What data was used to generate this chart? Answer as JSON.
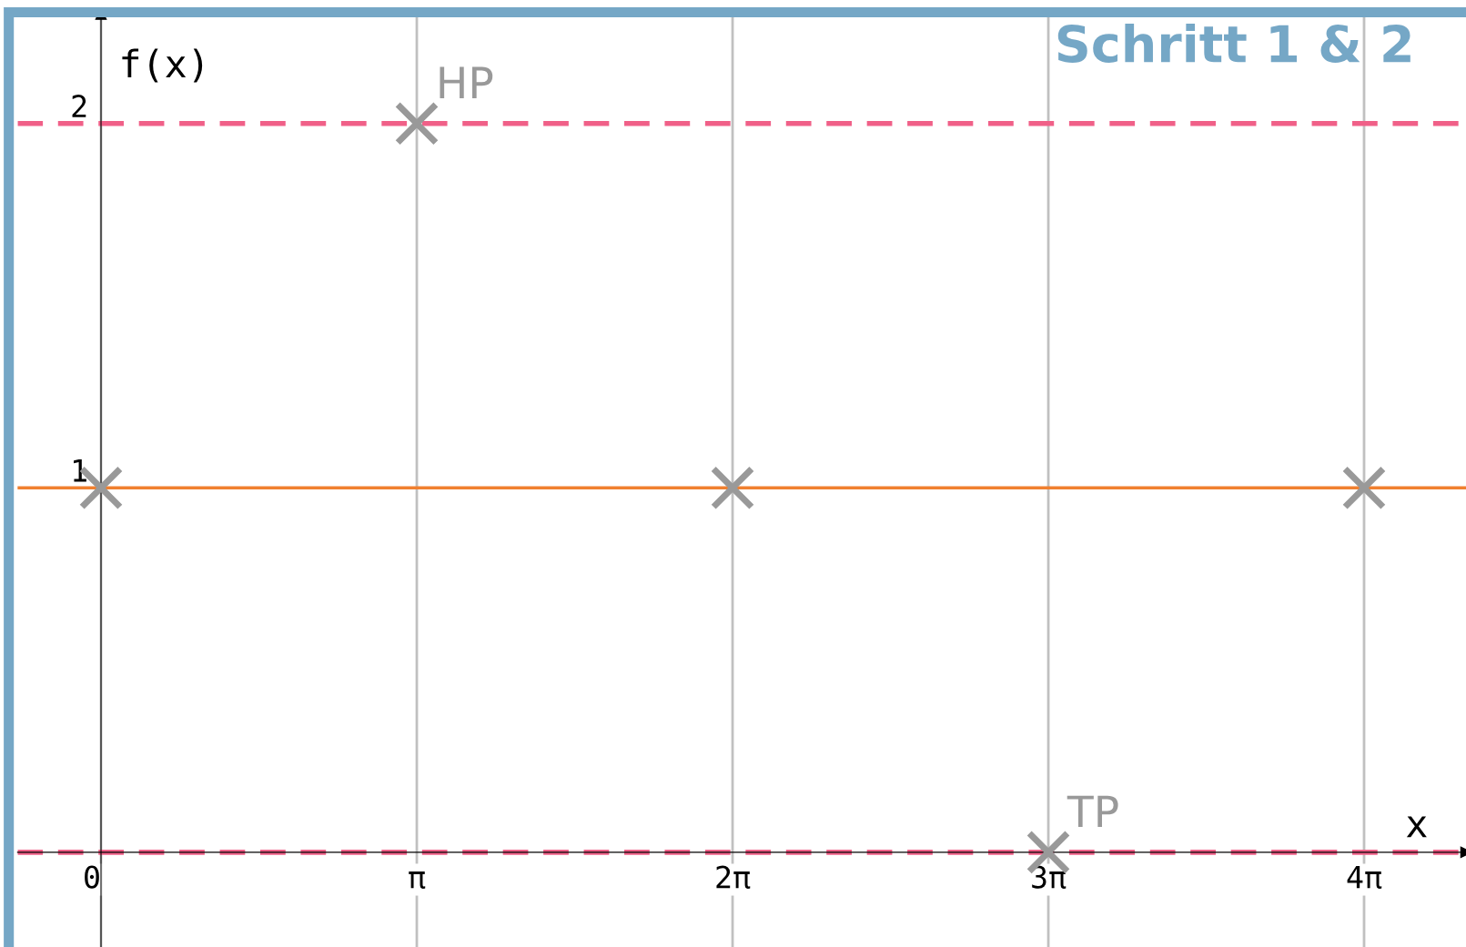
{
  "chart_data": {
    "type": "scatter",
    "title": "Schritt 1 & 2",
    "xlabel": "x",
    "ylabel": "f(x)",
    "series": [
      {
        "color": "#999999",
        "x": [
          0,
          3.1416,
          6.2832,
          9.4248,
          12.566
        ],
        "values": [
          1,
          2,
          1,
          0,
          1
        ]
      }
    ],
    "marker": "cross",
    "xlim": [
      -0.83,
      13.58
    ],
    "ylim": [
      -0.26,
      2.3
    ],
    "xticks": [
      {
        "value": 0,
        "label": "0"
      },
      {
        "value": 3.1416,
        "label": "π"
      },
      {
        "value": 6.2832,
        "label": "2π"
      },
      {
        "value": 9.4248,
        "label": "3π"
      },
      {
        "value": 12.566,
        "label": "4π"
      }
    ],
    "yticks": [
      1,
      2
    ],
    "grid": "x",
    "ref_lines": [
      {
        "axis": "y",
        "value": 2,
        "color": "#f06088",
        "line_style": "dashed"
      },
      {
        "axis": "y",
        "value": 0,
        "color": "#f06088",
        "line_style": "dashed"
      },
      {
        "axis": "y",
        "value": 1,
        "color": "#f08030",
        "line_style": "solid"
      }
    ],
    "annotations": [
      {
        "text": "HP",
        "x": 3.1416,
        "y": 2
      },
      {
        "text": "TP",
        "x": 9.4248,
        "y": 0
      }
    ]
  }
}
